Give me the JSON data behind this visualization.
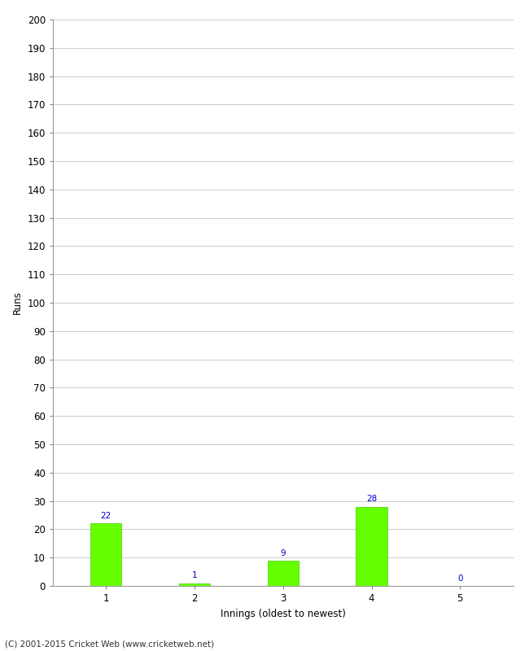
{
  "categories": [
    1,
    2,
    3,
    4,
    5
  ],
  "values": [
    22,
    1,
    9,
    28,
    0
  ],
  "bar_color": "#66ff00",
  "bar_edge_color": "#44cc00",
  "value_label_color": "#0000cc",
  "ylabel": "Runs",
  "xlabel": "Innings (oldest to newest)",
  "ylim": [
    0,
    200
  ],
  "yticks": [
    0,
    10,
    20,
    30,
    40,
    50,
    60,
    70,
    80,
    90,
    100,
    110,
    120,
    130,
    140,
    150,
    160,
    170,
    180,
    190,
    200
  ],
  "footer": "(C) 2001-2015 Cricket Web (www.cricketweb.net)",
  "background_color": "#ffffff",
  "grid_color": "#cccccc",
  "value_fontsize": 7.5,
  "label_fontsize": 8.5,
  "tick_fontsize": 8.5,
  "footer_fontsize": 7.5
}
